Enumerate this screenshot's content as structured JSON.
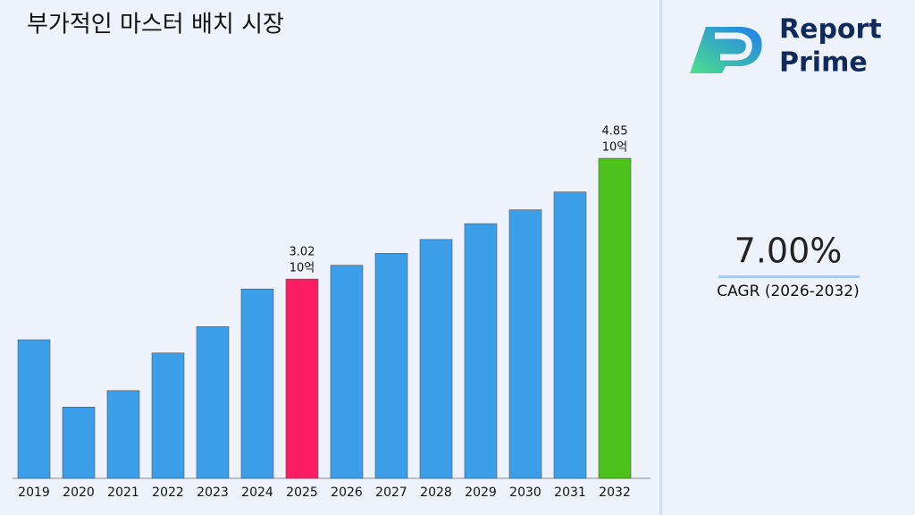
{
  "chart_data": {
    "type": "bar",
    "title": "부가적인 마스터 배치 시장",
    "categories": [
      "2019",
      "2020",
      "2021",
      "2022",
      "2023",
      "2024",
      "2025",
      "2026",
      "2027",
      "2028",
      "2029",
      "2030",
      "2031",
      "2032"
    ],
    "values": [
      2.1,
      1.08,
      1.33,
      1.9,
      2.3,
      2.87,
      3.02,
      3.23,
      3.41,
      3.62,
      3.86,
      4.07,
      4.34,
      4.85
    ],
    "value_labels": [
      null,
      null,
      null,
      null,
      null,
      null,
      "3.02",
      null,
      null,
      null,
      null,
      null,
      null,
      "4.85"
    ],
    "unit": "10억",
    "colors": [
      "#3a9fe8",
      "#3a9fe8",
      "#3a9fe8",
      "#3a9fe8",
      "#3a9fe8",
      "#3a9fe8",
      "#fb1c64",
      "#3a9fe8",
      "#3a9fe8",
      "#3a9fe8",
      "#3a9fe8",
      "#3a9fe8",
      "#3a9fe8",
      "#4cc21a"
    ],
    "ylim": [
      0,
      5
    ]
  },
  "brand": {
    "line1": "Report",
    "line2": "Prime"
  },
  "cagr": {
    "value": "7.00%",
    "label": "CAGR (2026-2032)"
  }
}
